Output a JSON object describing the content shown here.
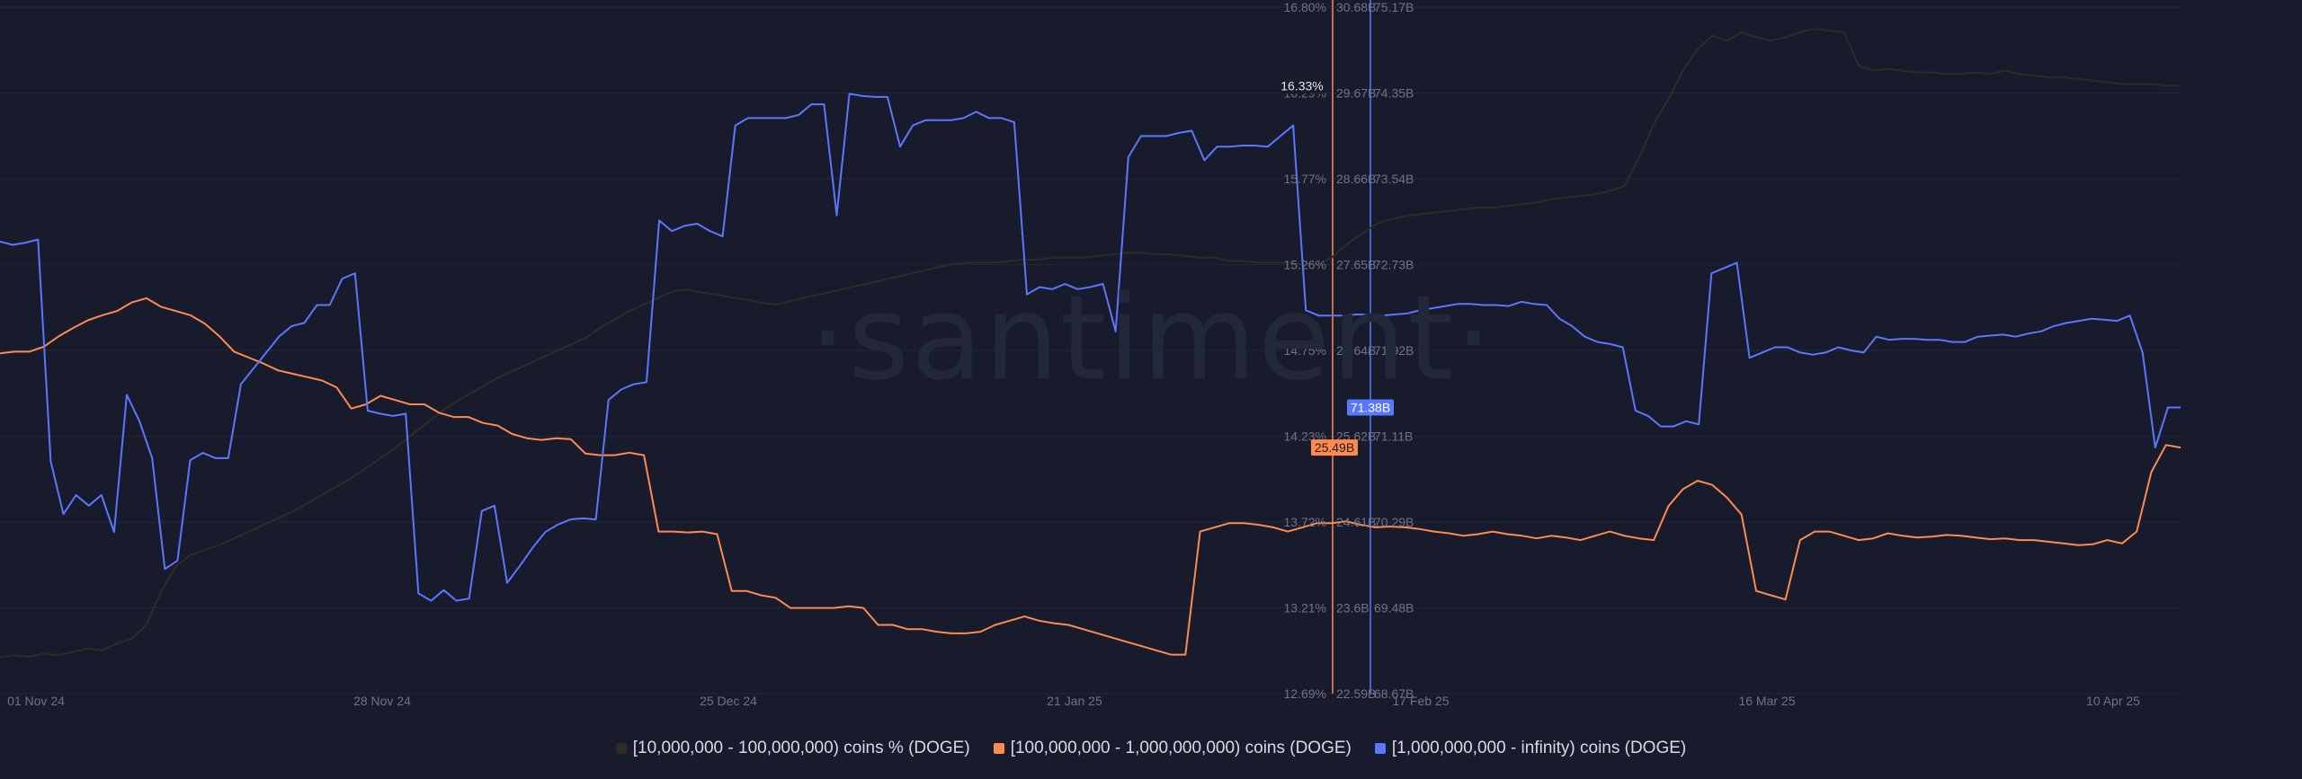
{
  "watermark": "·santiment·",
  "colors": {
    "background": "#181b2b",
    "series_dark": "#2f2c24",
    "series_orange": "#ff8a50",
    "series_blue": "#5a78ff",
    "grid": "#23273a",
    "tick": "#6e7386"
  },
  "chart_data": {
    "type": "line",
    "title": "",
    "grid": true,
    "legend_placement": "bottom-center",
    "x_ticks": [
      "01 Nov 24",
      "28 Nov 24",
      "25 Dec 24",
      "21 Jan 25",
      "17 Feb 25",
      "16 Mar 25",
      "10 Apr 25"
    ],
    "axes": {
      "pct": {
        "ticks": [
          "16.80%",
          "16.29%",
          "15.77%",
          "15.26%",
          "14.75%",
          "14.23%",
          "13.72%",
          "13.21%",
          "12.69%"
        ],
        "range": [
          12.69,
          16.8
        ],
        "last_label": "16.33%"
      },
      "mid": {
        "ticks": [
          "30.68B",
          "29.67B",
          "28.66B",
          "27.65B",
          "26.64B",
          "25.62B",
          "24.61B",
          "23.6B",
          "22.59B"
        ],
        "range": [
          22.59,
          30.68
        ],
        "last_label": "25.49B"
      },
      "big": {
        "ticks": [
          "75.17B",
          "74.35B",
          "73.54B",
          "72.73B",
          "71.92B",
          "71.11B",
          "70.29B",
          "69.48B",
          "68.67B"
        ],
        "range": [
          68.67,
          75.17
        ],
        "last_label": "71.38B"
      }
    },
    "series": [
      {
        "name": "[10,000,000 - 100,000,000) coins % (DOGE)",
        "axis": "pct",
        "color": "#2f2c24",
        "values": [
          12.91,
          12.92,
          12.91,
          12.93,
          12.92,
          12.94,
          12.96,
          12.95,
          12.99,
          13.02,
          13.1,
          13.3,
          13.45,
          13.52,
          13.55,
          13.58,
          13.62,
          13.66,
          13.7,
          13.74,
          13.78,
          13.83,
          13.88,
          13.93,
          13.98,
          14.04,
          14.1,
          14.16,
          14.23,
          14.3,
          14.37,
          14.43,
          14.48,
          14.53,
          14.58,
          14.62,
          14.66,
          14.7,
          14.74,
          14.78,
          14.82,
          14.88,
          14.93,
          14.98,
          15.02,
          15.06,
          15.1,
          15.11,
          15.09,
          15.08,
          15.06,
          15.05,
          15.03,
          15.02,
          15.04,
          15.06,
          15.08,
          15.1,
          15.12,
          15.14,
          15.16,
          15.18,
          15.2,
          15.22,
          15.24,
          15.26,
          15.27,
          15.27,
          15.27,
          15.28,
          15.29,
          15.29,
          15.3,
          15.3,
          15.3,
          15.31,
          15.32,
          15.33,
          15.33,
          15.32,
          15.32,
          15.31,
          15.3,
          15.3,
          15.28,
          15.28,
          15.27,
          15.27,
          15.27,
          15.26,
          15.26,
          15.3,
          15.38,
          15.44,
          15.5,
          15.53,
          15.55,
          15.56,
          15.57,
          15.58,
          15.59,
          15.6,
          15.6,
          15.61,
          15.62,
          15.63,
          15.65,
          15.66,
          15.67,
          15.68,
          15.7,
          15.73,
          15.9,
          16.1,
          16.25,
          16.42,
          16.55,
          16.63,
          16.6,
          16.65,
          16.62,
          16.6,
          16.62,
          16.65,
          16.67,
          16.66,
          16.65,
          16.45,
          16.42,
          16.43,
          16.42,
          16.41,
          16.41,
          16.4,
          16.4,
          16.41,
          16.4,
          16.42,
          16.4,
          16.39,
          16.38,
          16.38,
          16.37,
          16.36,
          16.35,
          16.34,
          16.34,
          16.34,
          16.33,
          16.33
        ]
      },
      {
        "name": "[100,000,000 - 1,000,000,000) coins (DOGE)",
        "axis": "mid",
        "color": "#ff8a50",
        "values": [
          26.6,
          26.62,
          26.62,
          26.68,
          26.8,
          26.9,
          26.99,
          27.05,
          27.1,
          27.2,
          27.25,
          27.15,
          27.1,
          27.05,
          26.95,
          26.8,
          26.62,
          26.55,
          26.48,
          26.4,
          26.36,
          26.32,
          26.28,
          26.2,
          25.95,
          26.0,
          26.1,
          26.05,
          26.0,
          26.0,
          25.9,
          25.85,
          25.85,
          25.78,
          25.75,
          25.65,
          25.6,
          25.58,
          25.6,
          25.59,
          25.42,
          25.4,
          25.4,
          25.43,
          25.4,
          24.5,
          24.5,
          24.49,
          24.5,
          24.47,
          23.8,
          23.8,
          23.75,
          23.72,
          23.6,
          23.6,
          23.6,
          23.6,
          23.62,
          23.6,
          23.4,
          23.4,
          23.35,
          23.35,
          23.32,
          23.3,
          23.3,
          23.32,
          23.4,
          23.45,
          23.5,
          23.45,
          23.42,
          23.4,
          23.35,
          23.3,
          23.25,
          23.2,
          23.15,
          23.1,
          23.05,
          23.05,
          24.5,
          24.55,
          24.6,
          24.6,
          24.58,
          24.55,
          24.5,
          24.55,
          24.6,
          24.6,
          24.62,
          24.58,
          24.55,
          24.56,
          24.55,
          24.53,
          24.5,
          24.48,
          24.45,
          24.47,
          24.5,
          24.47,
          24.45,
          24.42,
          24.45,
          24.43,
          24.4,
          24.45,
          24.5,
          24.45,
          24.42,
          24.4,
          24.8,
          25.0,
          25.1,
          25.05,
          24.9,
          24.7,
          23.8,
          23.75,
          23.7,
          24.4,
          24.5,
          24.5,
          24.45,
          24.4,
          24.42,
          24.48,
          24.45,
          24.43,
          24.44,
          24.46,
          24.45,
          24.43,
          24.41,
          24.42,
          24.4,
          24.4,
          24.38,
          24.36,
          24.34,
          24.35,
          24.4,
          24.36,
          24.5,
          25.2,
          25.52,
          25.49
        ]
      },
      {
        "name": "[1,000,000,000 - infinity) coins (DOGE)",
        "axis": "big",
        "color": "#5a78ff",
        "values": [
          72.95,
          72.92,
          72.94,
          72.97,
          70.87,
          70.37,
          70.55,
          70.45,
          70.55,
          70.2,
          71.5,
          71.25,
          70.9,
          69.85,
          69.93,
          70.88,
          70.95,
          70.9,
          70.9,
          71.6,
          71.75,
          71.9,
          72.05,
          72.15,
          72.18,
          72.35,
          72.35,
          72.6,
          72.65,
          71.35,
          71.32,
          71.3,
          71.32,
          69.62,
          69.55,
          69.65,
          69.55,
          69.57,
          70.4,
          70.45,
          69.72,
          69.88,
          70.05,
          70.2,
          70.27,
          70.32,
          70.33,
          70.32,
          71.45,
          71.55,
          71.6,
          71.62,
          73.15,
          73.05,
          73.1,
          73.12,
          73.05,
          73.0,
          74.05,
          74.12,
          74.12,
          74.12,
          74.12,
          74.15,
          74.25,
          74.25,
          73.2,
          74.35,
          74.33,
          74.32,
          74.32,
          73.85,
          74.05,
          74.1,
          74.1,
          74.1,
          74.12,
          74.18,
          74.12,
          74.12,
          74.08,
          72.45,
          72.52,
          72.5,
          72.55,
          72.5,
          72.52,
          72.55,
          72.1,
          73.75,
          73.95,
          73.95,
          73.95,
          73.98,
          74.0,
          73.72,
          73.85,
          73.85,
          73.86,
          73.86,
          73.85,
          73.95,
          74.05,
          72.3,
          72.25,
          72.25,
          72.25,
          72.26,
          72.26,
          72.25,
          72.26,
          72.27,
          72.3,
          72.32,
          72.34,
          72.36,
          72.36,
          72.35,
          72.35,
          72.34,
          72.38,
          72.36,
          72.35,
          72.22,
          72.15,
          72.05,
          72.0,
          71.98,
          71.95,
          71.35,
          71.3,
          71.2,
          71.2,
          71.25,
          71.22,
          72.65,
          72.7,
          72.75,
          71.85,
          71.9,
          71.95,
          71.95,
          71.9,
          71.88,
          71.9,
          71.95,
          71.92,
          71.9,
          72.05,
          72.02,
          72.03,
          72.03,
          72.02,
          72.02,
          72.0,
          72.0,
          72.05,
          72.06,
          72.07,
          72.05,
          72.08,
          72.1,
          72.15,
          72.18,
          72.2,
          72.22,
          72.21,
          72.2,
          72.25,
          71.9,
          71.0,
          71.38,
          71.38
        ]
      }
    ]
  }
}
